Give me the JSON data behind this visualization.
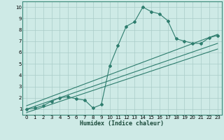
{
  "xlabel": "Humidex (Indice chaleur)",
  "ylabel": "",
  "bg_color": "#ceeae6",
  "grid_color": "#aaccc8",
  "line_color": "#2e7d6e",
  "xlim": [
    -0.5,
    23.5
  ],
  "ylim": [
    0.5,
    10.5
  ],
  "xticks": [
    0,
    1,
    2,
    3,
    4,
    5,
    6,
    7,
    8,
    9,
    10,
    11,
    12,
    13,
    14,
    15,
    16,
    17,
    18,
    19,
    20,
    21,
    22,
    23
  ],
  "yticks": [
    1,
    2,
    3,
    4,
    5,
    6,
    7,
    8,
    9,
    10
  ],
  "main_x": [
    0,
    1,
    2,
    3,
    4,
    5,
    6,
    7,
    8,
    9,
    10,
    11,
    12,
    13,
    14,
    15,
    16,
    17,
    18,
    19,
    20,
    21,
    22,
    23
  ],
  "main_y": [
    1.0,
    1.1,
    1.3,
    1.7,
    2.0,
    2.1,
    1.9,
    1.8,
    1.1,
    1.4,
    4.8,
    6.6,
    8.3,
    8.7,
    10.0,
    9.6,
    9.4,
    8.8,
    7.2,
    7.0,
    6.8,
    6.8,
    7.3,
    7.5
  ],
  "line1_x": [
    0,
    23
  ],
  "line1_y": [
    1.3,
    7.6
  ],
  "line2_x": [
    0,
    23
  ],
  "line2_y": [
    1.0,
    6.8
  ],
  "line3_x": [
    0,
    23
  ],
  "line3_y": [
    0.7,
    6.3
  ]
}
